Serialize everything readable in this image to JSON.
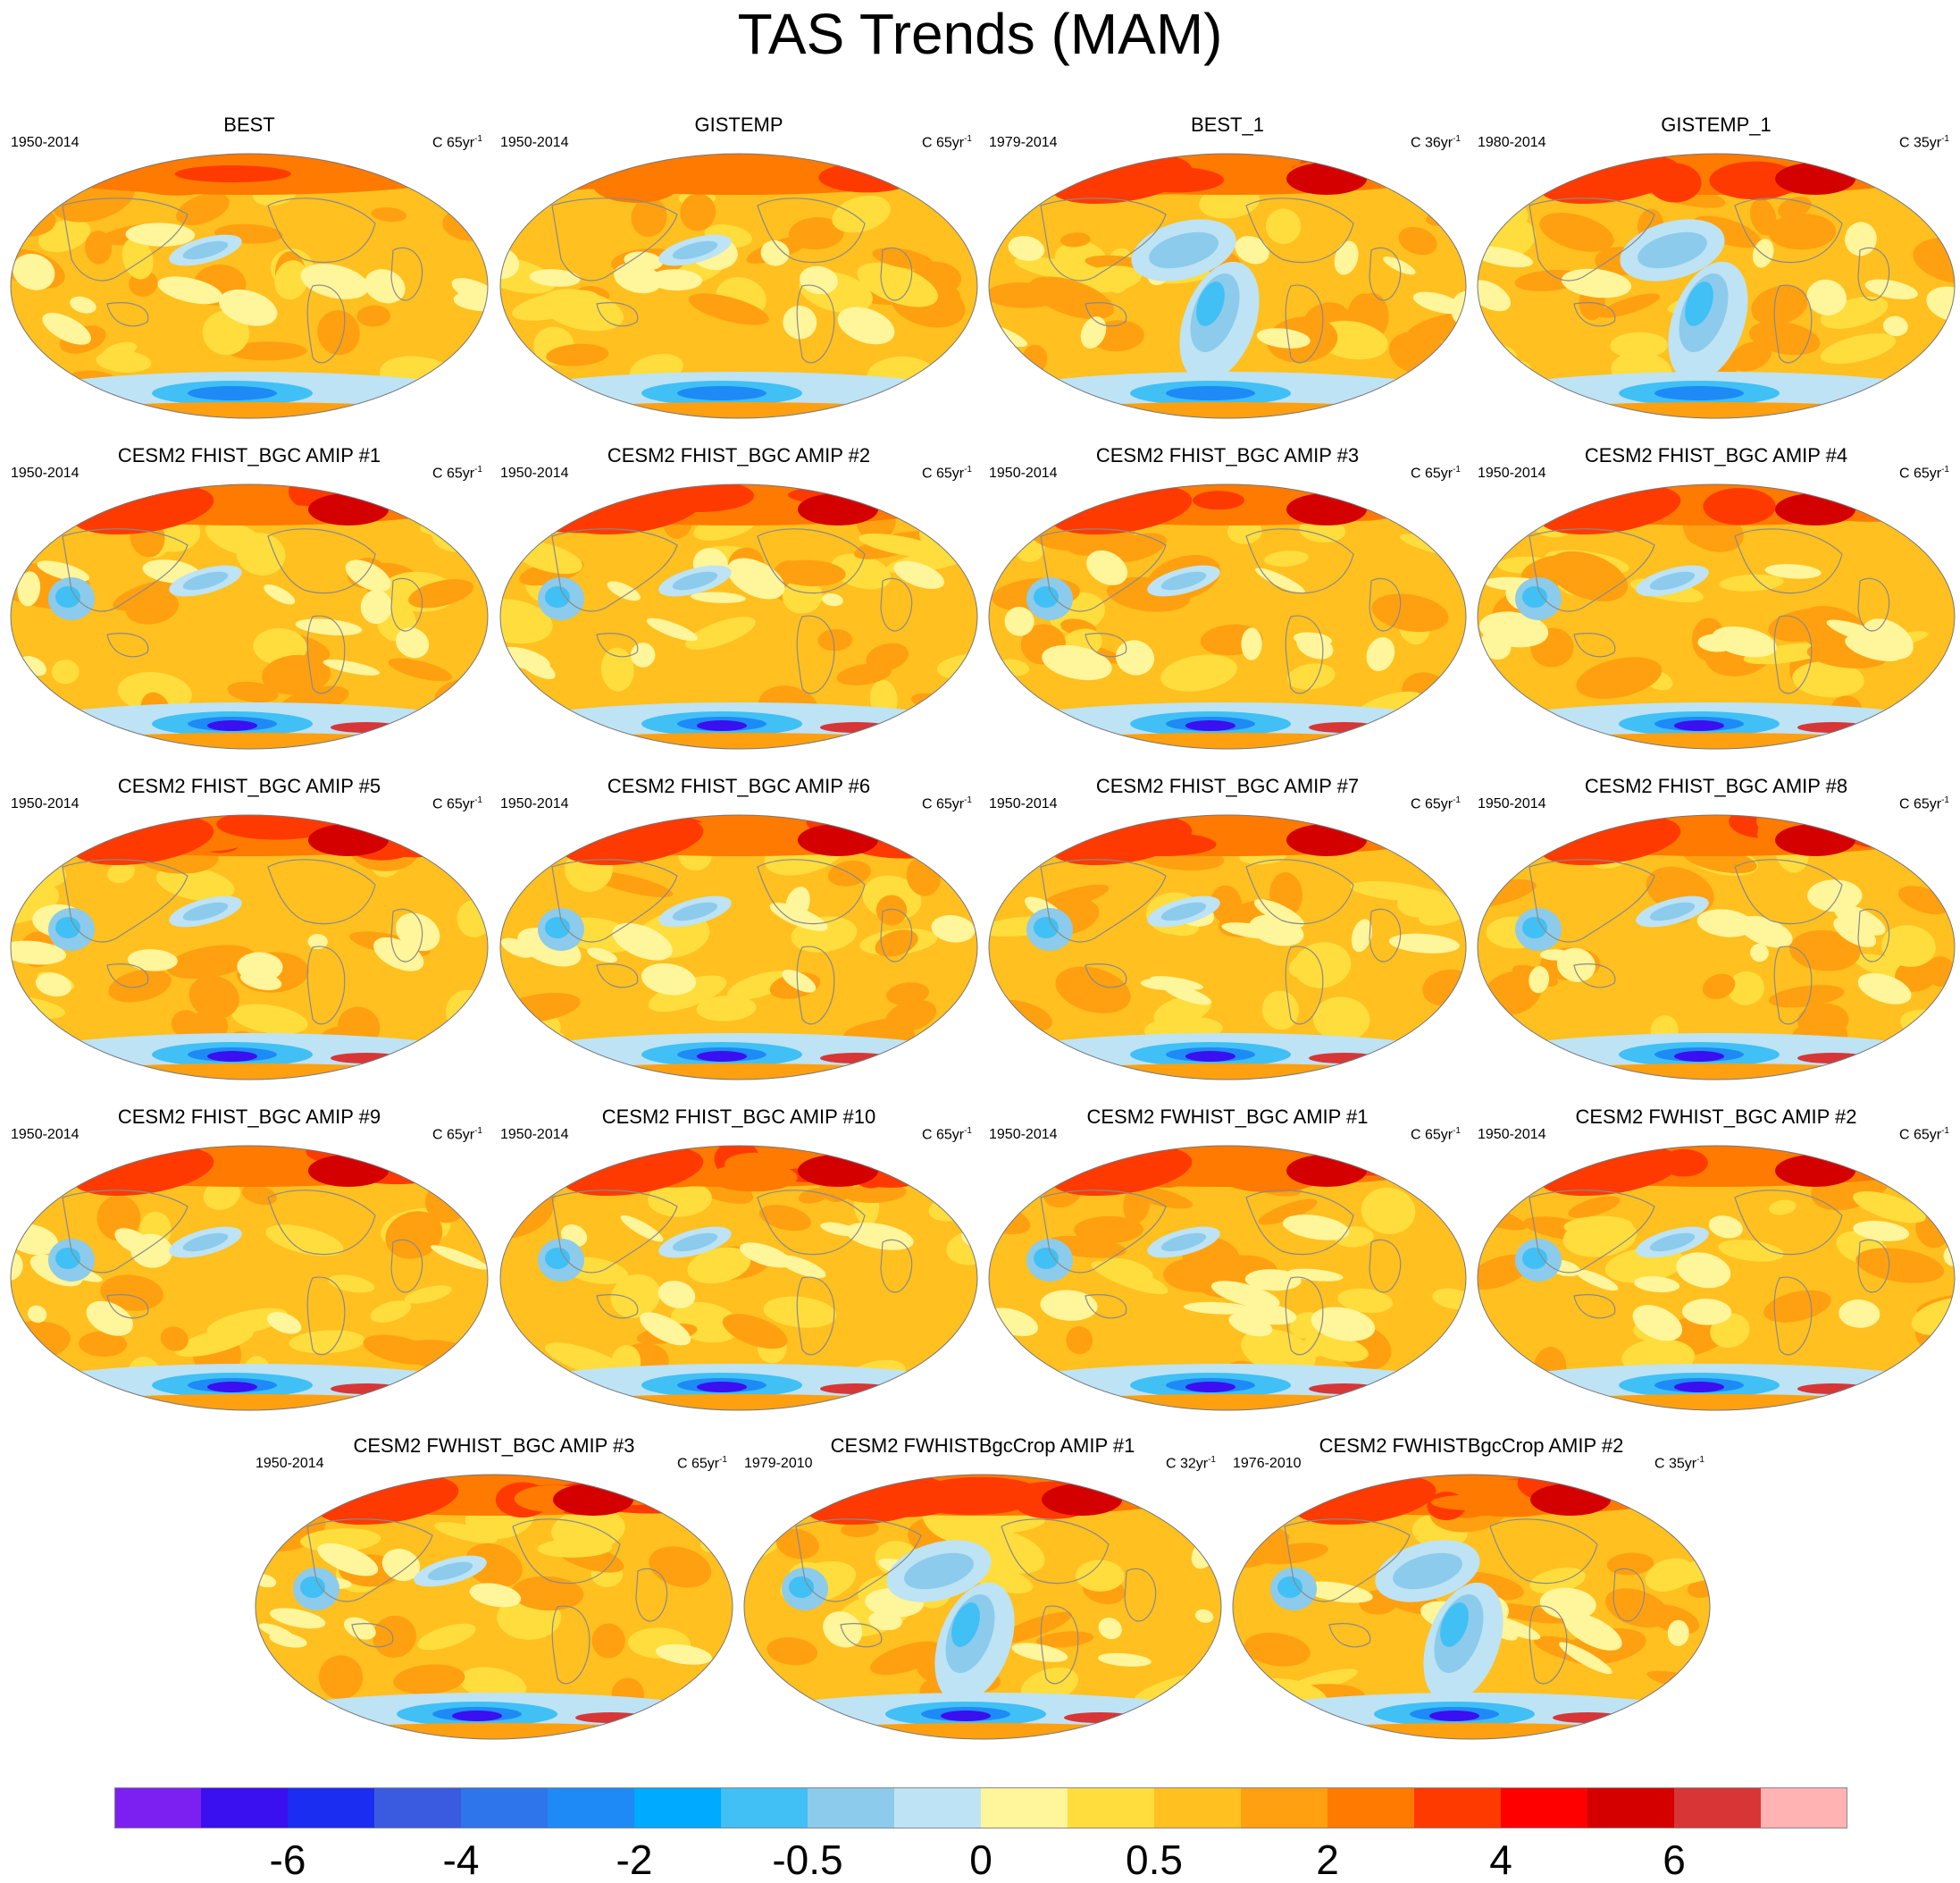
{
  "chart_data": {
    "type": "heatmap",
    "title": "TAS Trends (MAM)",
    "colorbar": {
      "colors": [
        "#7b20f0",
        "#3a0ff0",
        "#1a2df0",
        "#3a5ae0",
        "#2e74ea",
        "#1e8af5",
        "#00aaff",
        "#40c0f5",
        "#8ccbeb",
        "#bde3f5",
        "#fff59a",
        "#ffdd3c",
        "#ffc020",
        "#ffa010",
        "#ff7a00",
        "#ff3a00",
        "#ff0000",
        "#d40000",
        "#d83636",
        "#ffb3b3"
      ],
      "tick_labels": [
        "-6",
        "-4",
        "-2",
        "-0.5",
        "0",
        "0.5",
        "2",
        "4",
        "6"
      ]
    },
    "panels": [
      {
        "name": "BEST",
        "years": "1950-2014",
        "units": "C 65yr",
        "pattern": "obs"
      },
      {
        "name": "GISTEMP",
        "years": "1950-2014",
        "units": "C 65yr",
        "pattern": "obs"
      },
      {
        "name": "BEST_1",
        "years": "1979-2014",
        "units": "C 36yr",
        "pattern": "obs_recent"
      },
      {
        "name": "GISTEMP_1",
        "years": "1980-2014",
        "units": "C 35yr",
        "pattern": "obs_recent"
      },
      {
        "name": "CESM2 FHIST_BGC AMIP #1",
        "years": "1950-2014",
        "units": "C 65yr",
        "pattern": "model"
      },
      {
        "name": "CESM2 FHIST_BGC AMIP #2",
        "years": "1950-2014",
        "units": "C 65yr",
        "pattern": "model"
      },
      {
        "name": "CESM2 FHIST_BGC AMIP #3",
        "years": "1950-2014",
        "units": "C 65yr",
        "pattern": "model"
      },
      {
        "name": "CESM2 FHIST_BGC AMIP #4",
        "years": "1950-2014",
        "units": "C 65yr",
        "pattern": "model"
      },
      {
        "name": "CESM2 FHIST_BGC AMIP #5",
        "years": "1950-2014",
        "units": "C 65yr",
        "pattern": "model"
      },
      {
        "name": "CESM2 FHIST_BGC AMIP #6",
        "years": "1950-2014",
        "units": "C 65yr",
        "pattern": "model"
      },
      {
        "name": "CESM2 FHIST_BGC AMIP #7",
        "years": "1950-2014",
        "units": "C 65yr",
        "pattern": "model"
      },
      {
        "name": "CESM2 FHIST_BGC AMIP #8",
        "years": "1950-2014",
        "units": "C 65yr",
        "pattern": "model"
      },
      {
        "name": "CESM2 FHIST_BGC AMIP #9",
        "years": "1950-2014",
        "units": "C 65yr",
        "pattern": "model"
      },
      {
        "name": "CESM2 FHIST_BGC AMIP #10",
        "years": "1950-2014",
        "units": "C 65yr",
        "pattern": "model"
      },
      {
        "name": "CESM2 FWHIST_BGC AMIP #1",
        "years": "1950-2014",
        "units": "C 65yr",
        "pattern": "model"
      },
      {
        "name": "CESM2 FWHIST_BGC AMIP #2",
        "years": "1950-2014",
        "units": "C 65yr",
        "pattern": "model"
      },
      {
        "name": "CESM2 FWHIST_BGC AMIP #3",
        "years": "1950-2014",
        "units": "C 65yr",
        "pattern": "model"
      },
      {
        "name": "CESM2 FWHISTBgcCrop AMIP #1",
        "years": "1979-2010",
        "units": "C 32yr",
        "pattern": "model_recent"
      },
      {
        "name": "CESM2 FWHISTBgcCrop AMIP #2",
        "years": "1976-2010",
        "units": "C 35yr",
        "pattern": "model_recent"
      }
    ]
  }
}
